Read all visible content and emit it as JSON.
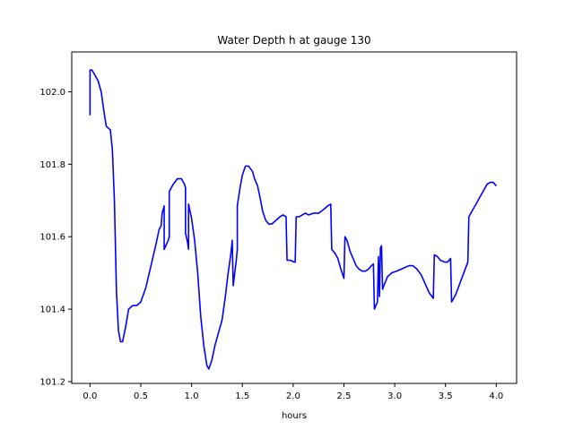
{
  "chart_data": {
    "type": "line",
    "title": "Water Depth h at gauge 130",
    "xlabel": "hours",
    "ylabel": "",
    "xlim": [
      -0.18,
      4.2
    ],
    "ylim": [
      101.195,
      102.11
    ],
    "xticks": [
      0.0,
      0.5,
      1.0,
      1.5,
      2.0,
      2.5,
      3.0,
      3.5,
      4.0
    ],
    "xtick_labels": [
      "0.0",
      "0.5",
      "1.0",
      "1.5",
      "2.0",
      "2.5",
      "3.0",
      "3.5",
      "4.0"
    ],
    "yticks": [
      101.2,
      101.4,
      101.6,
      101.8,
      102.0
    ],
    "ytick_labels": [
      "101.2",
      "101.4",
      "101.6",
      "101.8",
      "102.0"
    ],
    "grid": false,
    "series": [
      {
        "color": "#0000ff",
        "points": [
          [
            0.0,
            101.935
          ],
          [
            0.0,
            102.06
          ],
          [
            0.02,
            102.06
          ],
          [
            0.05,
            102.045
          ],
          [
            0.08,
            102.03
          ],
          [
            0.11,
            102.0
          ],
          [
            0.14,
            101.94
          ],
          [
            0.16,
            101.905
          ],
          [
            0.18,
            101.9
          ],
          [
            0.2,
            101.895
          ],
          [
            0.22,
            101.84
          ],
          [
            0.24,
            101.7
          ],
          [
            0.26,
            101.45
          ],
          [
            0.28,
            101.34
          ],
          [
            0.3,
            101.31
          ],
          [
            0.32,
            101.31
          ],
          [
            0.35,
            101.35
          ],
          [
            0.38,
            101.4
          ],
          [
            0.42,
            101.41
          ],
          [
            0.46,
            101.41
          ],
          [
            0.5,
            101.42
          ],
          [
            0.55,
            101.46
          ],
          [
            0.6,
            101.52
          ],
          [
            0.65,
            101.58
          ],
          [
            0.68,
            101.62
          ],
          [
            0.7,
            101.63
          ],
          [
            0.71,
            101.665
          ],
          [
            0.73,
            101.685
          ],
          [
            0.73,
            101.565
          ],
          [
            0.77,
            101.59
          ],
          [
            0.78,
            101.6
          ],
          [
            0.78,
            101.725
          ],
          [
            0.82,
            101.745
          ],
          [
            0.86,
            101.76
          ],
          [
            0.9,
            101.76
          ],
          [
            0.93,
            101.745
          ],
          [
            0.94,
            101.735
          ],
          [
            0.94,
            101.61
          ],
          [
            0.96,
            101.585
          ],
          [
            0.97,
            101.565
          ],
          [
            0.97,
            101.69
          ],
          [
            1.0,
            101.65
          ],
          [
            1.03,
            101.59
          ],
          [
            1.06,
            101.5
          ],
          [
            1.09,
            101.38
          ],
          [
            1.12,
            101.3
          ],
          [
            1.15,
            101.245
          ],
          [
            1.17,
            101.235
          ],
          [
            1.2,
            101.26
          ],
          [
            1.23,
            101.3
          ],
          [
            1.26,
            101.33
          ],
          [
            1.3,
            101.37
          ],
          [
            1.33,
            101.43
          ],
          [
            1.36,
            101.5
          ],
          [
            1.39,
            101.56
          ],
          [
            1.4,
            101.59
          ],
          [
            1.41,
            101.465
          ],
          [
            1.44,
            101.535
          ],
          [
            1.45,
            101.565
          ],
          [
            1.45,
            101.685
          ],
          [
            1.48,
            101.74
          ],
          [
            1.5,
            101.77
          ],
          [
            1.53,
            101.795
          ],
          [
            1.56,
            101.795
          ],
          [
            1.6,
            101.78
          ],
          [
            1.62,
            101.76
          ],
          [
            1.65,
            101.74
          ],
          [
            1.68,
            101.7
          ],
          [
            1.7,
            101.67
          ],
          [
            1.73,
            101.645
          ],
          [
            1.76,
            101.635
          ],
          [
            1.79,
            101.635
          ],
          [
            1.83,
            101.645
          ],
          [
            1.87,
            101.655
          ],
          [
            1.9,
            101.66
          ],
          [
            1.93,
            101.655
          ],
          [
            1.94,
            101.535
          ],
          [
            1.97,
            101.535
          ],
          [
            2.01,
            101.53
          ],
          [
            2.02,
            101.53
          ],
          [
            2.03,
            101.655
          ],
          [
            2.06,
            101.655
          ],
          [
            2.09,
            101.66
          ],
          [
            2.12,
            101.665
          ],
          [
            2.15,
            101.66
          ],
          [
            2.2,
            101.665
          ],
          [
            2.25,
            101.665
          ],
          [
            2.3,
            101.675
          ],
          [
            2.34,
            101.685
          ],
          [
            2.37,
            101.69
          ],
          [
            2.38,
            101.565
          ],
          [
            2.41,
            101.555
          ],
          [
            2.44,
            101.54
          ],
          [
            2.47,
            101.51
          ],
          [
            2.5,
            101.485
          ],
          [
            2.51,
            101.6
          ],
          [
            2.53,
            101.59
          ],
          [
            2.56,
            101.56
          ],
          [
            2.59,
            101.54
          ],
          [
            2.62,
            101.52
          ],
          [
            2.65,
            101.51
          ],
          [
            2.68,
            101.505
          ],
          [
            2.71,
            101.505
          ],
          [
            2.74,
            101.51
          ],
          [
            2.77,
            101.52
          ],
          [
            2.79,
            101.525
          ],
          [
            2.8,
            101.4
          ],
          [
            2.83,
            101.42
          ],
          [
            2.84,
            101.545
          ],
          [
            2.85,
            101.435
          ],
          [
            2.86,
            101.57
          ],
          [
            2.87,
            101.575
          ],
          [
            2.88,
            101.455
          ],
          [
            2.9,
            101.47
          ],
          [
            2.93,
            101.49
          ],
          [
            2.97,
            101.5
          ],
          [
            3.02,
            101.505
          ],
          [
            3.06,
            101.51
          ],
          [
            3.1,
            101.515
          ],
          [
            3.14,
            101.52
          ],
          [
            3.18,
            101.52
          ],
          [
            3.22,
            101.51
          ],
          [
            3.26,
            101.495
          ],
          [
            3.3,
            101.47
          ],
          [
            3.34,
            101.445
          ],
          [
            3.38,
            101.43
          ],
          [
            3.39,
            101.55
          ],
          [
            3.42,
            101.545
          ],
          [
            3.45,
            101.535
          ],
          [
            3.49,
            101.53
          ],
          [
            3.52,
            101.53
          ],
          [
            3.55,
            101.54
          ],
          [
            3.56,
            101.42
          ],
          [
            3.6,
            101.44
          ],
          [
            3.64,
            101.47
          ],
          [
            3.68,
            101.5
          ],
          [
            3.72,
            101.53
          ],
          [
            3.73,
            101.655
          ],
          [
            3.76,
            101.67
          ],
          [
            3.8,
            101.69
          ],
          [
            3.84,
            101.71
          ],
          [
            3.88,
            101.73
          ],
          [
            3.91,
            101.745
          ],
          [
            3.94,
            101.75
          ],
          [
            3.97,
            101.75
          ],
          [
            4.0,
            101.74
          ]
        ]
      }
    ]
  }
}
